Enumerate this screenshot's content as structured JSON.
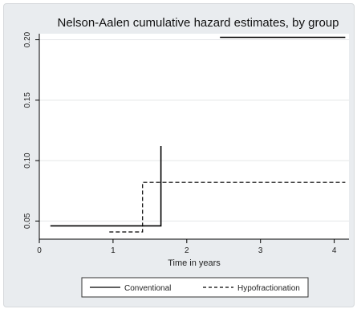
{
  "chart_data": {
    "type": "line",
    "title": "Nelson-Aalen cumulative hazard estimates, by group",
    "xlabel": "Time in years",
    "ylabel": "",
    "xlim": [
      0,
      4.2
    ],
    "ylim": [
      0.035,
      0.205
    ],
    "x_ticks": [
      0,
      1,
      2,
      3,
      4
    ],
    "x_tick_labels": [
      "0",
      "1",
      "2",
      "3",
      "4"
    ],
    "y_ticks": [
      0.05,
      0.1,
      0.15,
      0.2
    ],
    "y_tick_labels": [
      "0.05",
      "0.10",
      "0.15",
      "0.20"
    ],
    "grid": "horizontal",
    "legend_placement": "bottom",
    "series": [
      {
        "name": "Conventional",
        "style": "solid",
        "color": "#000000",
        "segments": [
          [
            [
              0.15,
              0.046
            ],
            [
              1.65,
              0.046
            ],
            [
              1.65,
              0.112
            ]
          ],
          [
            [
              2.45,
              0.202
            ],
            [
              4.15,
              0.202
            ]
          ]
        ]
      },
      {
        "name": "Hypofractionation",
        "style": "dashed",
        "color": "#000000",
        "segments": [
          [
            [
              0.95,
              0.041
            ],
            [
              1.4,
              0.041
            ],
            [
              1.4,
              0.082
            ],
            [
              4.15,
              0.082
            ]
          ]
        ]
      }
    ]
  }
}
